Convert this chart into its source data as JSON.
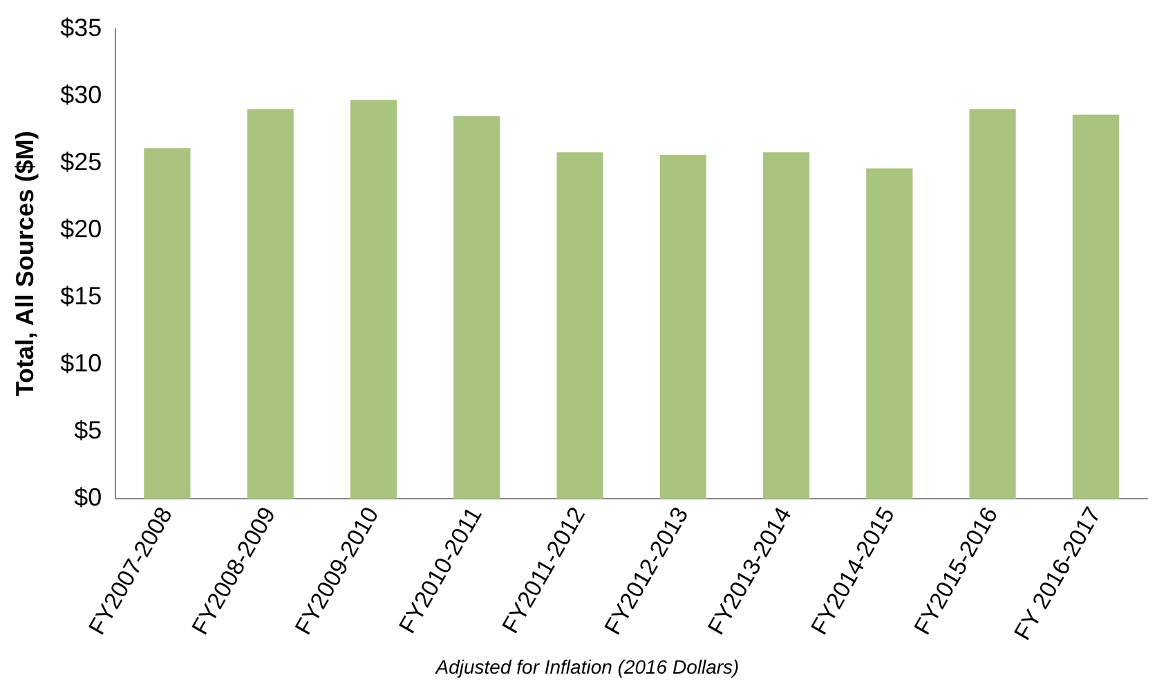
{
  "chart_data": {
    "type": "bar",
    "ylabel": "Total, All Sources ($M)",
    "annotations": [
      "Adjusted for Inflation (2016 Dollars)"
    ],
    "categories": [
      "FY2007-2008",
      "FY2008-2009",
      "FY2009-2010",
      "FY2010-2011",
      "FY2011-2012",
      "FY2012-2013",
      "FY2013-2014",
      "FY2014-2015",
      "FY2015-2016",
      "FY 2016-2017"
    ],
    "values": [
      26.1,
      29.0,
      29.7,
      28.5,
      25.8,
      25.6,
      25.8,
      24.6,
      29.0,
      28.6
    ],
    "color": "#a9c47f",
    "ylim": [
      0,
      35
    ],
    "yticks": [
      {
        "value": 0,
        "label": "$0"
      },
      {
        "value": 5,
        "label": "$5"
      },
      {
        "value": 10,
        "label": "$10"
      },
      {
        "value": 15,
        "label": "$15"
      },
      {
        "value": 20,
        "label": "$20"
      },
      {
        "value": 25,
        "label": "$25"
      },
      {
        "value": 30,
        "label": "$30"
      },
      {
        "value": 35,
        "label": "$35"
      }
    ],
    "grid": false,
    "legend": false
  }
}
